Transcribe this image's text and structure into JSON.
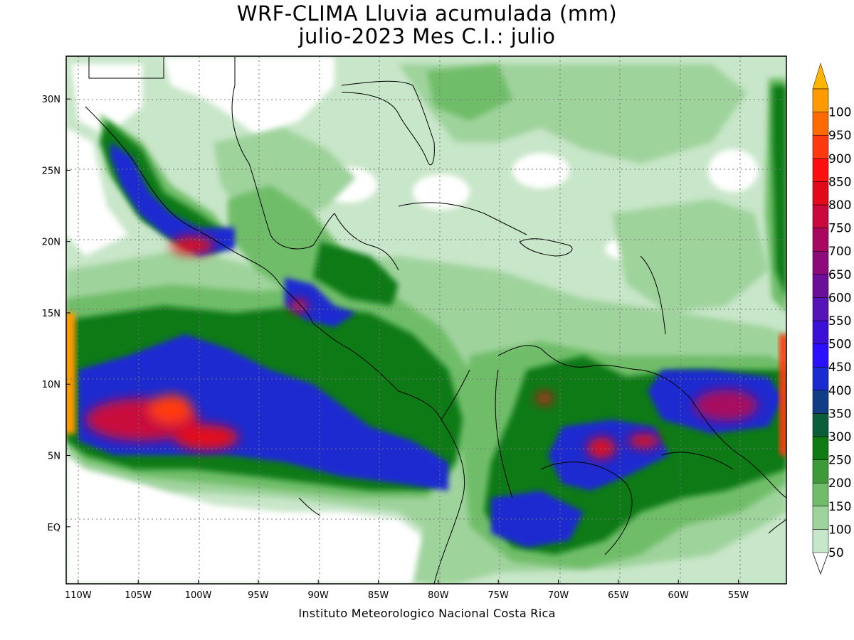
{
  "title": {
    "line1": "WRF-CLIMA Lluvia acumulada (mm)",
    "line2": "julio-2023 Mes C.I.: julio"
  },
  "credit": "Instituto Meteorologico Nacional Costa Rica",
  "map": {
    "lon_range": [
      -111,
      -51
    ],
    "lat_range": [
      -4,
      33
    ],
    "lat_ticks": [
      {
        "value": 30,
        "label": "30N"
      },
      {
        "value": 25,
        "label": "25N"
      },
      {
        "value": 20,
        "label": "20N"
      },
      {
        "value": 15,
        "label": "15N"
      },
      {
        "value": 10,
        "label": "10N"
      },
      {
        "value": 5,
        "label": "5N"
      },
      {
        "value": 0,
        "label": "EQ"
      }
    ],
    "lon_ticks": [
      {
        "value": -110,
        "label": "110W"
      },
      {
        "value": -105,
        "label": "105W"
      },
      {
        "value": -100,
        "label": "100W"
      },
      {
        "value": -95,
        "label": "95W"
      },
      {
        "value": -90,
        "label": "90W"
      },
      {
        "value": -85,
        "label": "85W"
      },
      {
        "value": -80,
        "label": "80W"
      },
      {
        "value": -75,
        "label": "75W"
      },
      {
        "value": -70,
        "label": "70W"
      },
      {
        "value": -65,
        "label": "65W"
      },
      {
        "value": -60,
        "label": "60W"
      },
      {
        "value": -55,
        "label": "55W"
      }
    ]
  },
  "colorbar": {
    "levels": [
      {
        "label": "50",
        "color": "#c8e6c9"
      },
      {
        "label": "100",
        "color": "#9fd39c"
      },
      {
        "label": "150",
        "color": "#6fbd69"
      },
      {
        "label": "200",
        "color": "#3c9a39"
      },
      {
        "label": "250",
        "color": "#0d7a12"
      },
      {
        "label": "300",
        "color": "#0b5e3a"
      },
      {
        "label": "350",
        "color": "#0f3e86"
      },
      {
        "label": "400",
        "color": "#1a2bd0"
      },
      {
        "label": "450",
        "color": "#2a10ff"
      },
      {
        "label": "500",
        "color": "#3a10d6"
      },
      {
        "label": "550",
        "color": "#5514b8"
      },
      {
        "label": "600",
        "color": "#6b0e9a"
      },
      {
        "label": "650",
        "color": "#8c0a7a"
      },
      {
        "label": "700",
        "color": "#a8085e"
      },
      {
        "label": "750",
        "color": "#c80a3c"
      },
      {
        "label": "800",
        "color": "#e20a1a"
      },
      {
        "label": "850",
        "color": "#ff1010"
      },
      {
        "label": "900",
        "color": "#ff3a10"
      },
      {
        "label": "950",
        "color": "#ff6a00"
      },
      {
        "label": "100",
        "color": "#ff9a00"
      }
    ],
    "over_color": "#ffb400"
  }
}
